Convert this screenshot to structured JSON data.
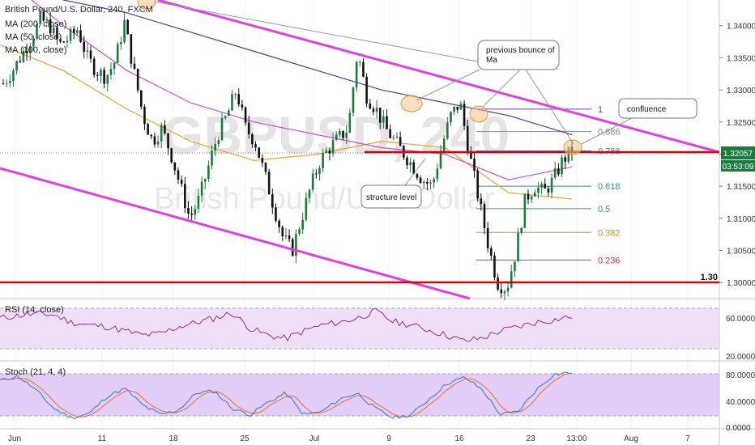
{
  "header": {
    "symbol_line": "British Pound/U.S. Dollar, 240, FXCM",
    "indicators": [
      "MA (200, close)",
      "MA (50, close)",
      "MA (100, close)"
    ]
  },
  "watermark": {
    "ticker": "GBPUSD, 240",
    "name": "British Pound/U.S. Dollar"
  },
  "colors": {
    "up": "#1b7a3d",
    "down": "#111111",
    "channel": "#e040e0",
    "hline": "#e00000",
    "ma200": "#3f3fb5",
    "ma50": "#f0a030",
    "ma100": "#d04dd0",
    "rsi": "#9a2a9a",
    "stoch_k": "#2a7fd4",
    "stoch_d": "#f07020",
    "band": "#e8d0f5",
    "band_stoch": "#dcc0f8"
  },
  "price_axis": {
    "ticks": [
      "1.34000",
      "1.33500",
      "1.33000",
      "1.32500",
      "1.32000",
      "1.31500",
      "1.31000",
      "1.30500",
      "1.30000"
    ],
    "current_price": "1.32057",
    "countdown": "03:53:09"
  },
  "rsi": {
    "label": "RSI (14, close)",
    "ticks": [
      "60.0000",
      "20.0000"
    ]
  },
  "stoch": {
    "label": "Stoch (21, 4, 4)",
    "ticks": [
      "80.0000",
      "40.0000",
      "0.0000"
    ]
  },
  "time_axis": {
    "labels": [
      "Jun",
      "11",
      "18",
      "25",
      "Jul",
      "9",
      "16",
      "23",
      "13:00",
      "Aug",
      "7"
    ]
  },
  "fib": {
    "levels": [
      "1",
      "0.886",
      "0.786",
      "0.618",
      "0.5",
      "0.382",
      "0.236"
    ]
  },
  "annotations": {
    "level_130": "1.30",
    "note_bounce": "previous bounce of Ma",
    "note_confluence": "confluence",
    "note_structure": "structure level"
  },
  "chart_data": {
    "type": "candlestick",
    "ohlc_close_path": [
      1.331,
      1.333,
      1.3355,
      1.338,
      1.341,
      1.34,
      1.337,
      1.338,
      1.3395,
      1.335,
      1.333,
      1.332,
      1.3345,
      1.3405,
      1.333,
      1.326,
      1.322,
      1.324,
      1.32,
      1.315,
      1.31,
      1.313,
      1.318,
      1.323,
      1.326,
      1.33,
      1.324,
      1.322,
      1.317,
      1.312,
      1.307,
      1.305,
      1.31,
      1.315,
      1.319,
      1.321,
      1.3225,
      1.324,
      1.336,
      1.329,
      1.327,
      1.324,
      1.322,
      1.32,
      1.318,
      1.316,
      1.315,
      1.321,
      1.326,
      1.328,
      1.32,
      1.313,
      1.306,
      1.3,
      1.299,
      1.305,
      1.313,
      1.315,
      1.314,
      1.316,
      1.319,
      1.3206
    ],
    "ma200": [
      1.347,
      1.344,
      1.342,
      1.339,
      1.336,
      1.333,
      1.33,
      1.328,
      1.326,
      1.323
    ],
    "ma50": [
      1.337,
      1.333,
      1.327,
      1.322,
      1.319,
      1.32,
      1.322,
      1.321,
      1.314,
      1.313
    ],
    "ma100": [
      1.348,
      1.34,
      1.333,
      1.328,
      1.325,
      1.323,
      1.321,
      1.32,
      1.316,
      1.318
    ],
    "rsi_values": [
      60,
      63,
      65,
      64,
      55,
      52,
      50,
      45,
      40,
      42,
      50,
      55,
      60,
      66,
      48,
      40,
      36,
      45,
      52,
      55,
      60,
      68,
      56,
      52,
      46,
      40,
      33,
      37,
      45,
      50,
      55,
      58,
      62
    ],
    "stoch_k_values": [
      75,
      82,
      60,
      30,
      15,
      22,
      50,
      62,
      35,
      20,
      28,
      55,
      58,
      30,
      20,
      40,
      55,
      20,
      25,
      45,
      55,
      30,
      15,
      20,
      45,
      70,
      80,
      60,
      20,
      25,
      60,
      85,
      88
    ],
    "ylim": [
      1.2975,
      1.344
    ],
    "rsi_ylim": [
      12,
      80
    ],
    "stoch_ylim": [
      0,
      100
    ]
  }
}
